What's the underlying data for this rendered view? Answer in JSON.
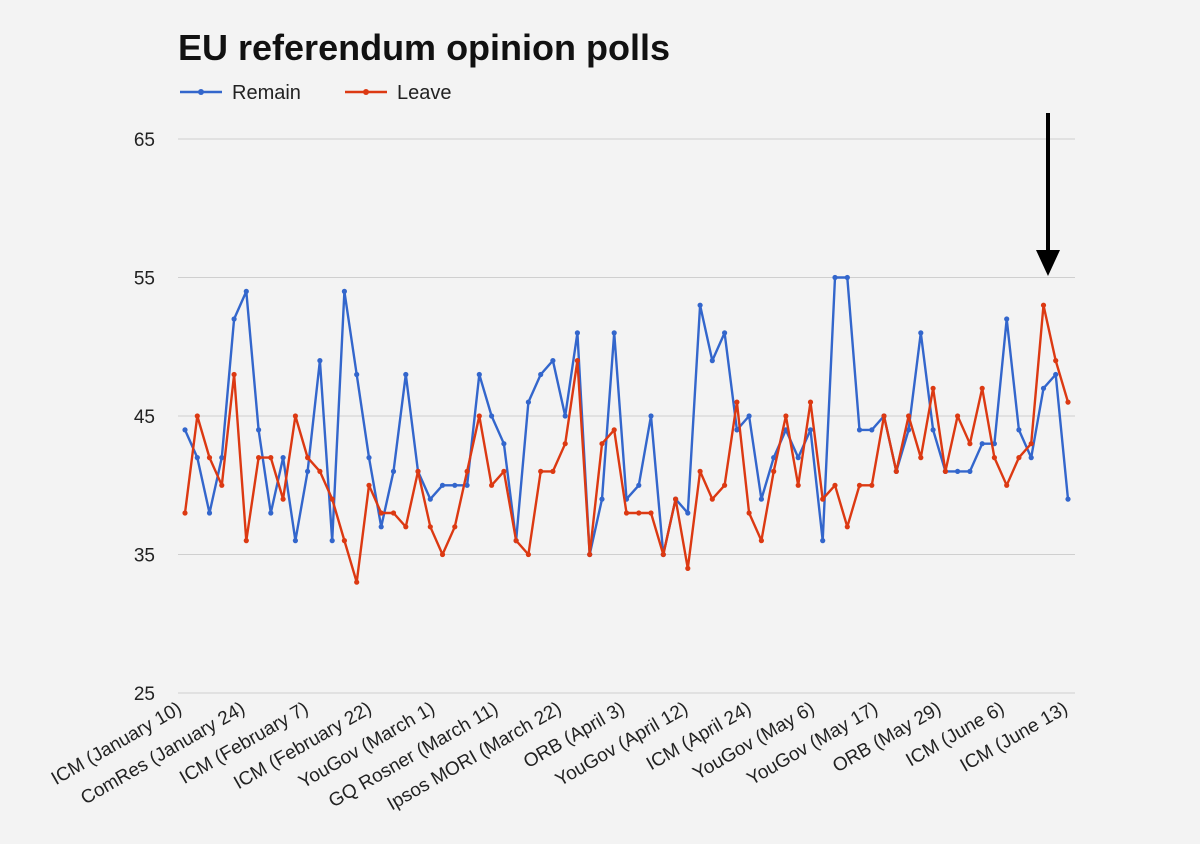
{
  "chart_data": {
    "type": "line",
    "title": "EU referendum opinion polls",
    "xlabel": "",
    "ylabel": "",
    "ylim": [
      25,
      65
    ],
    "yticks": [
      25,
      35,
      45,
      55,
      65
    ],
    "grid": true,
    "legend_position": "top-left",
    "x_tick_labels": [
      "ICM (January 10)",
      "ComRes (January 24)",
      "ICM (February 7)",
      "ICM (February 22)",
      "YouGov (March 1)",
      "GQ Rosner (March 11)",
      "Ipsos MORI (March 22)",
      "ORB (April 3)",
      "YouGov (April 12)",
      "ICM (April 24)",
      "YouGov (May 6)",
      "YouGov (May 17)",
      "ORB (May 29)",
      "ICM (June 6)",
      "ICM (June 13)"
    ],
    "series": [
      {
        "name": "Remain",
        "color": "#3366cc",
        "values": [
          44,
          42,
          38,
          42,
          52,
          54,
          44,
          38,
          42,
          36,
          41,
          49,
          36,
          54,
          48,
          42,
          37,
          41,
          48,
          41,
          39,
          40,
          40,
          40,
          48,
          45,
          43,
          36,
          46,
          48,
          49,
          45,
          51,
          35,
          39,
          51,
          39,
          40,
          45,
          35,
          39,
          38,
          53,
          49,
          51,
          44,
          45,
          39,
          42,
          44,
          42,
          44,
          36,
          55,
          55,
          44,
          44,
          45,
          41,
          44,
          51,
          44,
          41,
          41,
          41,
          43,
          43,
          52,
          44,
          42,
          47,
          48,
          39
        ]
      },
      {
        "name": "Leave",
        "color": "#dc3912",
        "values": [
          38,
          45,
          42,
          40,
          48,
          36,
          42,
          42,
          39,
          45,
          42,
          41,
          39,
          36,
          33,
          40,
          38,
          38,
          37,
          41,
          37,
          35,
          37,
          41,
          45,
          40,
          41,
          36,
          35,
          41,
          41,
          43,
          49,
          35,
          43,
          44,
          38,
          38,
          38,
          35,
          39,
          34,
          41,
          39,
          40,
          46,
          38,
          36,
          41,
          45,
          40,
          46,
          39,
          40,
          37,
          40,
          40,
          45,
          41,
          45,
          42,
          47,
          41,
          45,
          43,
          47,
          42,
          40,
          42,
          43,
          53,
          49,
          46
        ]
      }
    ],
    "annotation": "down-arrow"
  }
}
